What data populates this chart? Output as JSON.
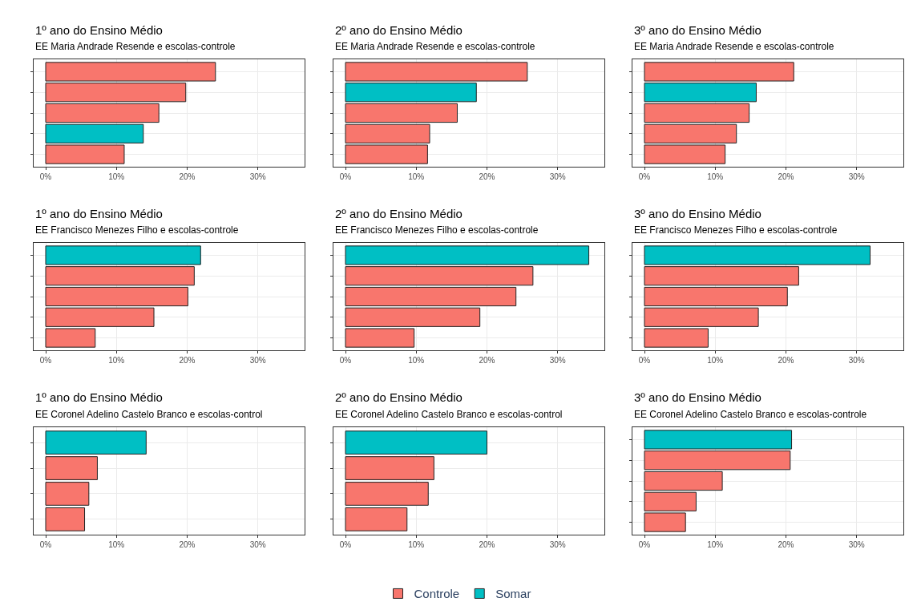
{
  "chart_data": [
    {
      "type": "bar",
      "orientation": "horizontal",
      "title": "1º ano do Ensino Médio",
      "subtitle": "EE Maria Andrade Resende e escolas-controle",
      "categories": [
        null,
        null,
        null,
        null,
        null
      ],
      "series": [
        {
          "name": "Controle",
          "color": "#f8766d",
          "values": [
            24.0,
            19.8,
            16.0,
            null,
            11.1
          ]
        },
        {
          "name": "Somar",
          "color": "#00bfc4",
          "values": [
            null,
            null,
            null,
            13.8,
            null
          ]
        }
      ],
      "xlim": [
        -1.7,
        36.6
      ],
      "xticks": [
        {
          "value": 0,
          "label": "0%"
        },
        {
          "value": 10,
          "label": "10%"
        },
        {
          "value": 20,
          "label": "20%"
        },
        {
          "value": 30,
          "label": "30%"
        }
      ],
      "tick_labels": "x",
      "grid": true,
      "legend": "bottom"
    },
    {
      "type": "bar",
      "orientation": "horizontal",
      "title": "2º ano do Ensino Médio",
      "subtitle": "EE Maria Andrade Resende e escolas-controle",
      "categories": [
        null,
        null,
        null,
        null,
        null
      ],
      "series": [
        {
          "name": "Controle",
          "color": "#f8766d",
          "values": [
            25.7,
            null,
            15.8,
            11.9,
            11.6
          ]
        },
        {
          "name": "Somar",
          "color": "#00bfc4",
          "values": [
            null,
            18.5,
            null,
            null,
            null
          ]
        }
      ],
      "xlim": [
        -1.7,
        36.6
      ],
      "xticks": [
        {
          "value": 0,
          "label": "0%"
        },
        {
          "value": 10,
          "label": "10%"
        },
        {
          "value": 20,
          "label": "20%"
        },
        {
          "value": 30,
          "label": "30%"
        }
      ],
      "tick_labels": "x",
      "grid": true,
      "legend": "bottom"
    },
    {
      "type": "bar",
      "orientation": "horizontal",
      "title": "3º ano do Ensino Médio",
      "subtitle": "EE Maria Andrade Resende e escolas-controle",
      "categories": [
        null,
        null,
        null,
        null,
        null
      ],
      "series": [
        {
          "name": "Controle",
          "color": "#f8766d",
          "values": [
            21.1,
            null,
            14.8,
            13.0,
            11.4
          ]
        },
        {
          "name": "Somar",
          "color": "#00bfc4",
          "values": [
            null,
            15.8,
            null,
            null,
            null
          ]
        }
      ],
      "xlim": [
        -1.7,
        36.6
      ],
      "xticks": [
        {
          "value": 0,
          "label": "0%"
        },
        {
          "value": 10,
          "label": "10%"
        },
        {
          "value": 20,
          "label": "20%"
        },
        {
          "value": 30,
          "label": "30%"
        }
      ],
      "tick_labels": "x",
      "grid": true,
      "legend": "bottom"
    },
    {
      "type": "bar",
      "orientation": "horizontal",
      "title": "1º ano do Ensino Médio",
      "subtitle": "EE Francisco Menezes Filho e escolas-controle",
      "categories": [
        null,
        null,
        null,
        null,
        null
      ],
      "series": [
        {
          "name": "Controle",
          "color": "#f8766d",
          "values": [
            null,
            21.0,
            20.1,
            15.3,
            7.0
          ]
        },
        {
          "name": "Somar",
          "color": "#00bfc4",
          "values": [
            21.9,
            null,
            null,
            null,
            null
          ]
        }
      ],
      "xlim": [
        -1.7,
        36.6
      ],
      "xticks": [
        {
          "value": 0,
          "label": "0%"
        },
        {
          "value": 10,
          "label": "10%"
        },
        {
          "value": 20,
          "label": "20%"
        },
        {
          "value": 30,
          "label": "30%"
        }
      ],
      "tick_labels": "x",
      "grid": true,
      "legend": "bottom"
    },
    {
      "type": "bar",
      "orientation": "horizontal",
      "title": "2º ano do Ensino Médio",
      "subtitle": "EE Francisco Menezes Filho e escolas-controle",
      "categories": [
        null,
        null,
        null,
        null,
        null
      ],
      "series": [
        {
          "name": "Controle",
          "color": "#f8766d",
          "values": [
            null,
            26.5,
            24.1,
            19.0,
            9.7
          ]
        },
        {
          "name": "Somar",
          "color": "#00bfc4",
          "values": [
            34.4,
            null,
            null,
            null,
            null
          ]
        }
      ],
      "xlim": [
        -1.7,
        36.6
      ],
      "xticks": [
        {
          "value": 0,
          "label": "0%"
        },
        {
          "value": 10,
          "label": "10%"
        },
        {
          "value": 20,
          "label": "20%"
        },
        {
          "value": 30,
          "label": "30%"
        }
      ],
      "tick_labels": "x",
      "grid": true,
      "legend": "bottom"
    },
    {
      "type": "bar",
      "orientation": "horizontal",
      "title": "3º ano do Ensino Médio",
      "subtitle": "EE Francisco Menezes Filho e escolas-controle",
      "categories": [
        null,
        null,
        null,
        null,
        null
      ],
      "series": [
        {
          "name": "Controle",
          "color": "#f8766d",
          "values": [
            null,
            21.8,
            20.2,
            16.1,
            9.0
          ]
        },
        {
          "name": "Somar",
          "color": "#00bfc4",
          "values": [
            31.9,
            null,
            null,
            null,
            null
          ]
        }
      ],
      "xlim": [
        -1.7,
        36.6
      ],
      "xticks": [
        {
          "value": 0,
          "label": "0%"
        },
        {
          "value": 10,
          "label": "10%"
        },
        {
          "value": 20,
          "label": "20%"
        },
        {
          "value": 30,
          "label": "30%"
        }
      ],
      "tick_labels": "x",
      "grid": true,
      "legend": "bottom"
    },
    {
      "type": "bar",
      "orientation": "horizontal",
      "title": "1º ano do Ensino Médio",
      "subtitle": "EE Coronel Adelino Castelo Branco e escolas-control",
      "categories": [
        null,
        null,
        null,
        null
      ],
      "series": [
        {
          "name": "Controle",
          "color": "#f8766d",
          "values": [
            null,
            7.3,
            6.1,
            5.5
          ]
        },
        {
          "name": "Somar",
          "color": "#00bfc4",
          "values": [
            14.2,
            null,
            null,
            null
          ]
        }
      ],
      "xlim": [
        -1.7,
        36.6
      ],
      "xticks": [
        {
          "value": 0,
          "label": "0%"
        },
        {
          "value": 10,
          "label": "10%"
        },
        {
          "value": 20,
          "label": "20%"
        },
        {
          "value": 30,
          "label": "30%"
        }
      ],
      "tick_labels": "x",
      "grid": true,
      "legend": "bottom"
    },
    {
      "type": "bar",
      "orientation": "horizontal",
      "title": "2º ano do Ensino Médio",
      "subtitle": "EE Coronel Adelino Castelo Branco e escolas-control",
      "categories": [
        null,
        null,
        null,
        null
      ],
      "series": [
        {
          "name": "Controle",
          "color": "#f8766d",
          "values": [
            null,
            12.5,
            11.7,
            8.7
          ]
        },
        {
          "name": "Somar",
          "color": "#00bfc4",
          "values": [
            20.0,
            null,
            null,
            null
          ]
        }
      ],
      "xlim": [
        -1.7,
        36.6
      ],
      "xticks": [
        {
          "value": 0,
          "label": "0%"
        },
        {
          "value": 10,
          "label": "10%"
        },
        {
          "value": 20,
          "label": "20%"
        },
        {
          "value": 30,
          "label": "30%"
        }
      ],
      "tick_labels": "x",
      "grid": true,
      "legend": "bottom"
    },
    {
      "type": "bar",
      "orientation": "horizontal",
      "title": "3º ano do Ensino Médio",
      "subtitle": "EE Coronel Adelino Castelo Branco e escolas-controle",
      "categories": [
        null,
        null,
        null,
        null,
        null
      ],
      "series": [
        {
          "name": "Controle",
          "color": "#f8766d",
          "values": [
            null,
            20.6,
            11.0,
            7.3,
            5.8
          ]
        },
        {
          "name": "Somar",
          "color": "#00bfc4",
          "values": [
            20.8,
            null,
            null,
            null,
            null
          ]
        }
      ],
      "xlim": [
        -1.7,
        36.6
      ],
      "xticks": [
        {
          "value": 0,
          "label": "0%"
        },
        {
          "value": 10,
          "label": "10%"
        },
        {
          "value": 20,
          "label": "20%"
        },
        {
          "value": 30,
          "label": "30%"
        }
      ],
      "tick_labels": "x",
      "grid": true,
      "legend": "bottom"
    }
  ]
}
